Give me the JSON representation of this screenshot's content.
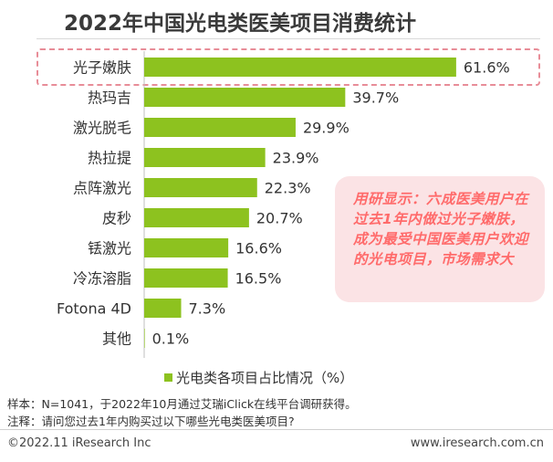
{
  "title": "2022年中国光电类医美项目消费统计",
  "chart_data": {
    "type": "bar",
    "orientation": "horizontal",
    "categories": [
      "光子嫩肤",
      "热玛吉",
      "激光脱毛",
      "热拉提",
      "点阵激光",
      "皮秒",
      "铥激光",
      "冷冻溶脂",
      "Fotona 4D",
      "其他"
    ],
    "values": [
      61.6,
      39.7,
      29.9,
      23.9,
      22.3,
      20.7,
      16.6,
      16.5,
      7.3,
      0.1
    ],
    "value_labels": [
      "61.6%",
      "39.7%",
      "29.9%",
      "23.9%",
      "22.3%",
      "20.7%",
      "16.6%",
      "16.5%",
      "7.3%",
      "0.1%"
    ],
    "series": [
      {
        "name": "光电类各项目占比情况（%）",
        "values": [
          61.6,
          39.7,
          29.9,
          23.9,
          22.3,
          20.7,
          16.6,
          16.5,
          7.3,
          0.1
        ]
      }
    ],
    "xlim": [
      0,
      70
    ],
    "grid": false,
    "legend_position": "bottom",
    "highlighted_category": "光子嫩肤",
    "bar_color": "#8dc21f"
  },
  "legend_label": "光电类各项目占比情况（%）",
  "callout_text": "用研显示：六成医美用户在过去1年内做过光子嫩肤，成为最受中国医美用户欢迎的光电项目，市场需求大",
  "notes": {
    "sample": "样本：N=1041，于2022年10月通过艾瑞iClick在线平台调研获得。",
    "remark": "注释：请问您过去1年内购买过以下哪些光电类医美项目?"
  },
  "footer": {
    "copyright": "©2022.11 iResearch Inc",
    "website": "www.iresearch.com.cn"
  },
  "colors": {
    "bar": "#8dc21f",
    "callout_bg": "#fbe3e5",
    "callout_text": "#ff6b6b",
    "highlight_border": "#e88d98"
  }
}
